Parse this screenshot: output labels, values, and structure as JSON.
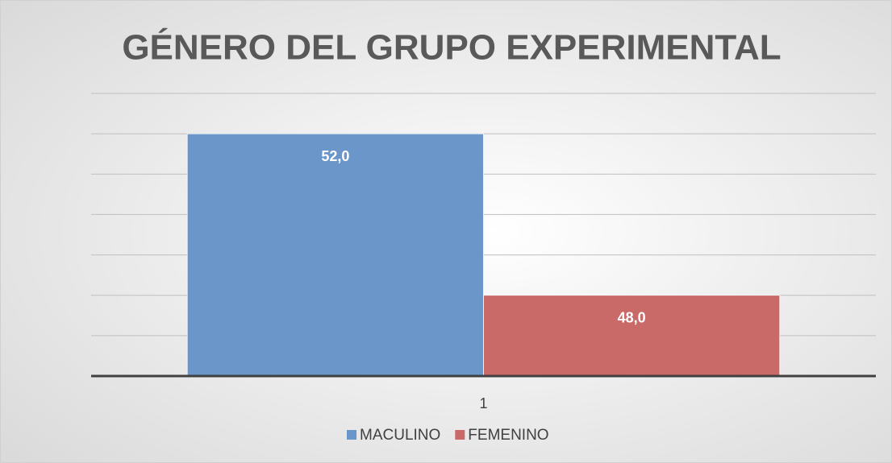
{
  "chart_data": {
    "type": "bar",
    "title": "GÉNERO DEL GRUPO EXPERIMENTAL",
    "categories": [
      "1"
    ],
    "series": [
      {
        "name": "MACULINO",
        "color": "#6a96c9",
        "values": [
          52
        ],
        "value_labels": [
          "52,0"
        ]
      },
      {
        "name": "FEMENINO",
        "color": "#c96a68",
        "values": [
          48
        ],
        "value_labels": [
          "48,0"
        ]
      }
    ],
    "ylim": [
      46,
      53
    ],
    "yticks": [
      46,
      47,
      48,
      49,
      50,
      51,
      52,
      53
    ],
    "grid": true,
    "legend": "bottom"
  }
}
